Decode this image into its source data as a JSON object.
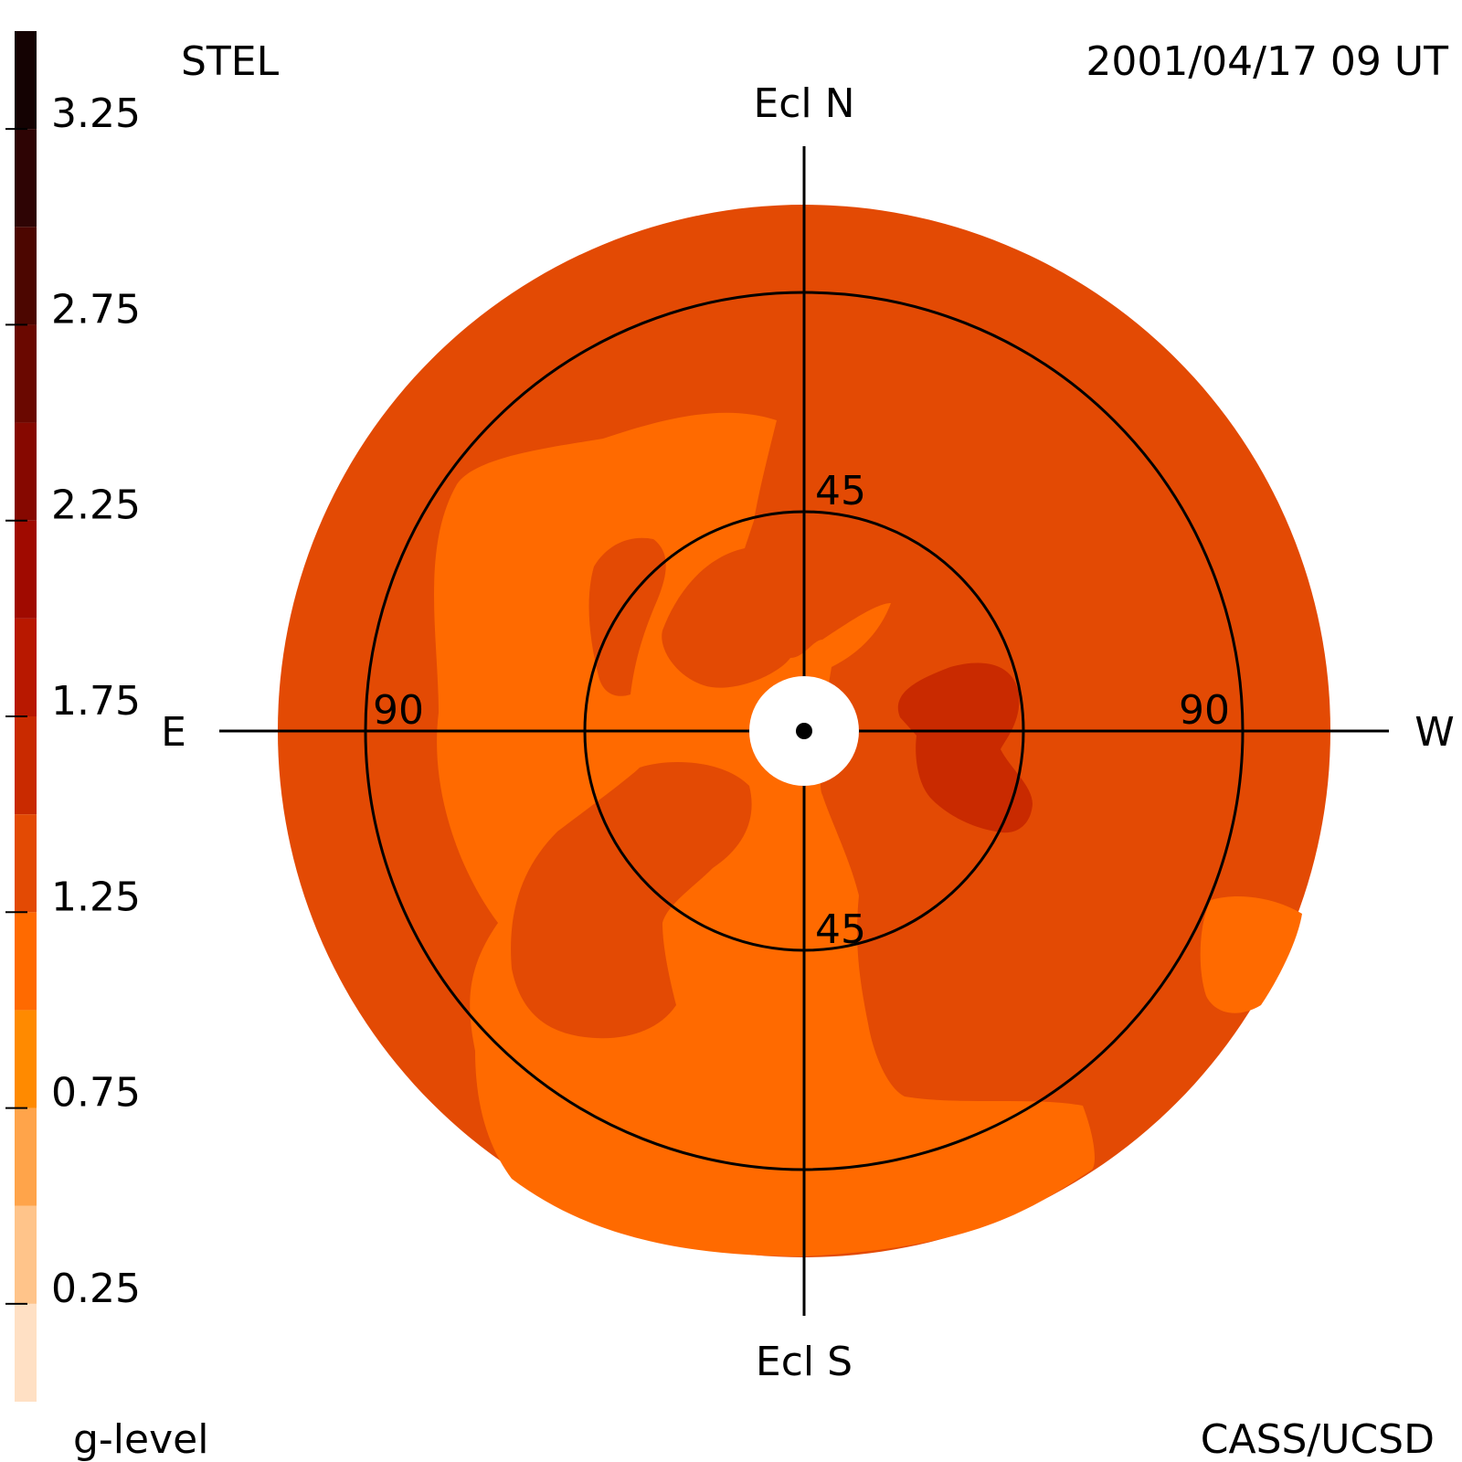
{
  "header": {
    "left_label": "STEL",
    "timestamp": "2001/04/17 09 UT"
  },
  "footer": {
    "colorbar_label": "g-level",
    "credit": "CASS/UCSD"
  },
  "colors": {
    "background": "#ffffff",
    "outer_ring": "#e34a04",
    "low_region": "#ff6a00",
    "mid_region": "#e34a04",
    "high_region": "#c92a00",
    "occulter": "#ffffff",
    "lines": "#000000"
  },
  "chart_data": {
    "type": "heatmap",
    "projection": "polar sky map (elongation from Sun)",
    "axis_labels": {
      "north": "Ecl N",
      "south": "Ecl S",
      "east": "E",
      "west": "W"
    },
    "circle_labels": {
      "inner_top": "45",
      "inner_bottom": "45",
      "outer_left": "90",
      "outer_right": "90"
    },
    "elongation_circles_deg": [
      45,
      90
    ],
    "colorbar": {
      "label": "g-level",
      "range": [
        0,
        3.5
      ],
      "ticks": [
        "3.25",
        "2.75",
        "2.25",
        "1.75",
        "1.25",
        "0.75",
        "0.25"
      ],
      "tick_values": [
        3.25,
        2.75,
        2.25,
        1.75,
        1.25,
        0.75,
        0.25
      ],
      "bands": [
        {
          "from": 0.0,
          "to": 0.25,
          "color": "#ffe0c4"
        },
        {
          "from": 0.25,
          "to": 0.5,
          "color": "#ffc48a"
        },
        {
          "from": 0.5,
          "to": 0.75,
          "color": "#ffa44a"
        },
        {
          "from": 0.75,
          "to": 1.0,
          "color": "#ff8a00"
        },
        {
          "from": 1.0,
          "to": 1.25,
          "color": "#ff6a00"
        },
        {
          "from": 1.25,
          "to": 1.5,
          "color": "#e34a04"
        },
        {
          "from": 1.5,
          "to": 1.75,
          "color": "#c92a00"
        },
        {
          "from": 1.75,
          "to": 2.0,
          "color": "#b81800"
        },
        {
          "from": 2.0,
          "to": 2.25,
          "color": "#a00a00"
        },
        {
          "from": 2.25,
          "to": 2.5,
          "color": "#860800"
        },
        {
          "from": 2.5,
          "to": 2.75,
          "color": "#6a0800"
        },
        {
          "from": 2.75,
          "to": 3.0,
          "color": "#4c0600"
        },
        {
          "from": 3.0,
          "to": 3.25,
          "color": "#2e0404"
        },
        {
          "from": 3.25,
          "to": 3.5,
          "color": "#140202"
        }
      ]
    }
  }
}
